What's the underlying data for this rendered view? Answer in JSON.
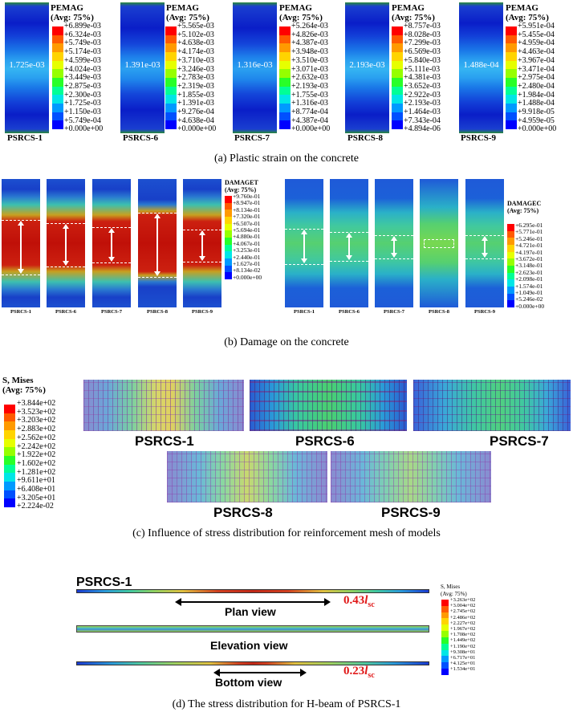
{
  "colors": {
    "scale12": [
      "#ff0000",
      "#ff5a00",
      "#ff9a00",
      "#ffd400",
      "#e6ff00",
      "#96ff00",
      "#28ff28",
      "#00ff96",
      "#00e6e6",
      "#009aff",
      "#0050ff",
      "#0000ff"
    ],
    "scale12_b": [
      "#ff0000",
      "#ff5a00",
      "#ff9a00",
      "#ffd400",
      "#e6ff00",
      "#96ff00",
      "#28ff28",
      "#00ff96",
      "#00e6e6",
      "#009aff",
      "#0050ff",
      "#0000ff"
    ]
  },
  "panel_a": {
    "legend_title_1": "PEMAG",
    "legend_title_2": "(Avg: 75%)",
    "caption": "(a) Plastic strain on the concrete",
    "specimens": [
      {
        "label": "PSRCS-1",
        "center_value": "1.725e-03",
        "legend": [
          "+6.899e-03",
          "+6.324e-03",
          "+5.749e-03",
          "+5.174e-03",
          "+4.599e-03",
          "+4.024e-03",
          "+3.449e-03",
          "+2.875e-03",
          "+2.300e-03",
          "+1.725e-03",
          "+1.150e-03",
          "+5.749e-04",
          "+0.000e+00"
        ]
      },
      {
        "label": "PSRCS-6",
        "center_value": "1.391e-03",
        "legend": [
          "+5.565e-03",
          "+5.102e-03",
          "+4.638e-03",
          "+4.174e-03",
          "+3.710e-03",
          "+3.246e-03",
          "+2.783e-03",
          "+2.319e-03",
          "+1.855e-03",
          "+1.391e-03",
          "+9.276e-04",
          "+4.638e-04",
          "+0.000e+00"
        ]
      },
      {
        "label": "PSRCS-7",
        "center_value": "1.316e-03",
        "legend": [
          "+5.264e-03",
          "+4.826e-03",
          "+4.387e-03",
          "+3.948e-03",
          "+3.510e-03",
          "+3.071e-03",
          "+2.632e-03",
          "+2.193e-03",
          "+1.755e-03",
          "+1.316e-03",
          "+8.774e-04",
          "+4.387e-04",
          "+0.000e+00"
        ]
      },
      {
        "label": "PSRCS-8",
        "center_value": "2.193e-03",
        "legend": [
          "+8.757e-03",
          "+8.028e-03",
          "+7.299e-03",
          "+6.569e-03",
          "+5.840e-03",
          "+5.111e-03",
          "+4.381e-03",
          "+3.652e-03",
          "+2.922e-03",
          "+2.193e-03",
          "+1.464e-03",
          "+7.343e-04",
          "+4.894e-06"
        ]
      },
      {
        "label": "PSRCS-9",
        "center_value": "1.488e-04",
        "legend": [
          "+5.951e-04",
          "+5.455e-04",
          "+4.959e-04",
          "+4.463e-04",
          "+3.967e-04",
          "+3.471e-04",
          "+2.975e-04",
          "+2.480e-04",
          "+1.984e-04",
          "+1.488e-04",
          "+9.918e-05",
          "+4.959e-05",
          "+0.000e+00"
        ]
      }
    ]
  },
  "panel_b": {
    "caption": "(b) Damage on the concrete",
    "tension": {
      "title_1": "DAMAGET",
      "title_2": "(Avg: 75%)",
      "legend": [
        "+9.760e-01",
        "+8.947e-01",
        "+8.134e-01",
        "+7.320e-01",
        "+6.507e-01",
        "+5.694e-01",
        "+4.880e-01",
        "+4.067e-01",
        "+3.253e-01",
        "+2.440e-01",
        "+1.627e-01",
        "+8.134e-02",
        "+0.000e+00"
      ],
      "labels": [
        "PSRCS-1",
        "PSRCS-6",
        "PSRCS-7",
        "PSRCS-8",
        "PSRCS-9"
      ]
    },
    "compression": {
      "title_1": "DAMAGEC",
      "title_2": "(Avg: 75%)",
      "legend": [
        "+6.295e-01",
        "+5.771e-01",
        "+5.246e-01",
        "+4.721e-01",
        "+4.197e-01",
        "+3.672e-01",
        "+3.148e-01",
        "+2.623e-01",
        "+2.098e-01",
        "+1.574e-01",
        "+1.049e-01",
        "+5.246e-02",
        "+0.000e+00"
      ],
      "labels": [
        "PSRCS-1",
        "PSRCS-6",
        "PSRCS-7",
        "PSRCS-8",
        "PSRCS-9"
      ]
    }
  },
  "panel_c": {
    "caption": "(c) Influence of stress distribution for reinforcement mesh of models",
    "title_1": "S, Mises",
    "title_2": "(Avg: 75%)",
    "legend": [
      "+3.844e+02",
      "+3.523e+02",
      "+3.203e+02",
      "+2.883e+02",
      "+2.562e+02",
      "+2.242e+02",
      "+1.922e+02",
      "+1.602e+02",
      "+1.281e+02",
      "+9.611e+01",
      "+6.408e+01",
      "+3.205e+01",
      "+2.224e-02"
    ],
    "labels": [
      "PSRCS-1",
      "PSRCS-6",
      "PSRCS-7",
      "PSRCS-8",
      "PSRCS-9"
    ]
  },
  "panel_d": {
    "caption": "(d) The stress distribution for H-beam of PSRCS-1",
    "specimen": "PSRCS-1",
    "title_1": "S, Mises",
    "title_2": "(Avg: 75%)",
    "legend": [
      "+3.263e+02",
      "+3.004e+02",
      "+2.745e+02",
      "+2.486e+02",
      "+2.227e+02",
      "+1.967e+02",
      "+1.708e+02",
      "+1.449e+02",
      "+1.190e+02",
      "+9.308e+01",
      "+6.717e+01",
      "+4.125e+01",
      "+1.534e+01"
    ],
    "plan_view": "Plan view",
    "elevation_view": "Elevation view",
    "bottom_view": "Bottom view",
    "plan_ratio_num": "0.43",
    "plan_ratio_var": "l",
    "plan_ratio_sub": "sc",
    "bottom_ratio_num": "0.23",
    "bottom_ratio_var": "l",
    "bottom_ratio_sub": "sc"
  }
}
